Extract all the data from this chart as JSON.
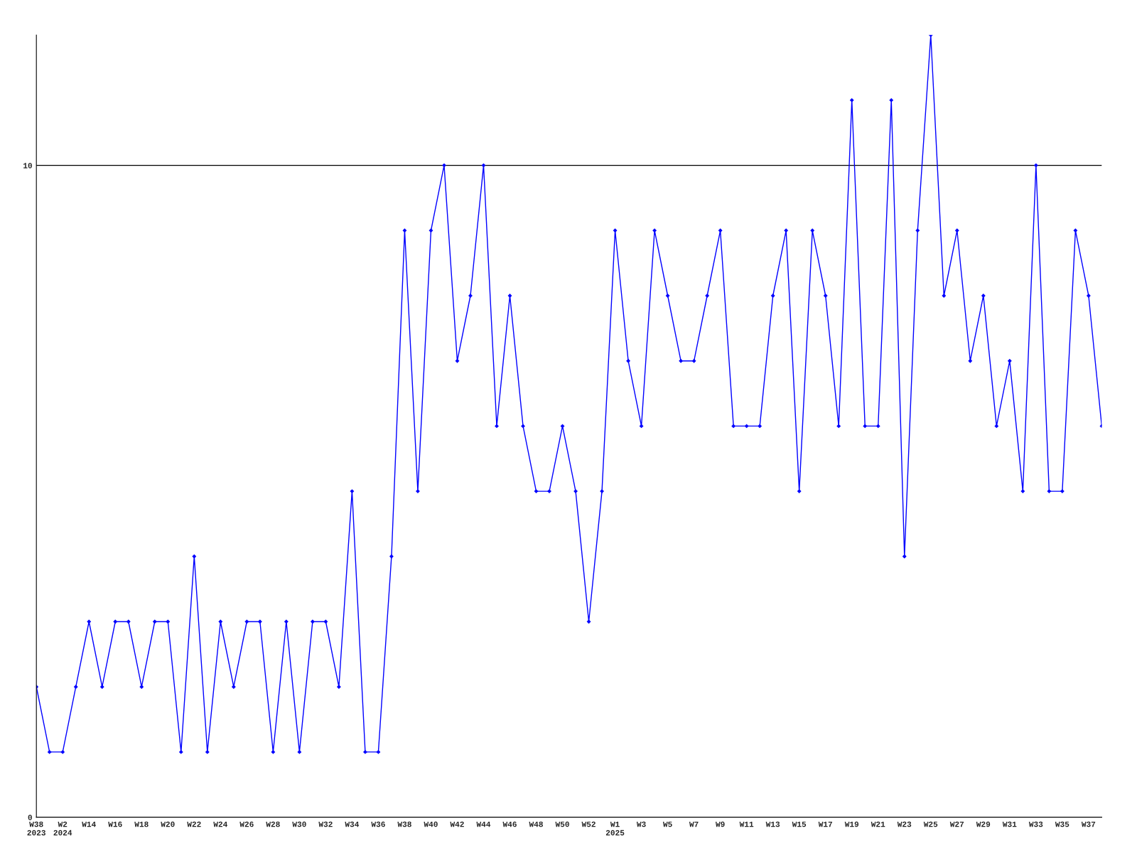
{
  "chart_data": {
    "type": "line",
    "categories": [
      "W38\n2023",
      null,
      "W2\n2024",
      null,
      "W14",
      null,
      "W16",
      null,
      "W18",
      null,
      "W20",
      null,
      "W22",
      null,
      "W24",
      null,
      "W26",
      null,
      "W28",
      null,
      "W30",
      null,
      "W32",
      null,
      "W34",
      null,
      "W36",
      null,
      "W38",
      null,
      "W40",
      null,
      "W42",
      null,
      "W44",
      null,
      "W46",
      null,
      "W48",
      null,
      "W50",
      null,
      "W52",
      null,
      "W1\n2025",
      null,
      "W3",
      null,
      "W5",
      null,
      "W7",
      null,
      "W9",
      null,
      "W11",
      null,
      "W13",
      null,
      "W15",
      null,
      "W17",
      null,
      "W19",
      null,
      "W21",
      null,
      "W23",
      null,
      "W25",
      null,
      "W27",
      null,
      "W29",
      null,
      "W31",
      null,
      "W33",
      null,
      "W35",
      null,
      "W37",
      null
    ],
    "series": [
      {
        "color": "#0000ff",
        "values": [
          2,
          1,
          1,
          2,
          3,
          2,
          3,
          3,
          2,
          3,
          3,
          1,
          4,
          1,
          3,
          2,
          3,
          3,
          1,
          3,
          1,
          3,
          3,
          2,
          5,
          1,
          1,
          4,
          9,
          5,
          9,
          10,
          7,
          8,
          10,
          6,
          8,
          6,
          5,
          5,
          6,
          5,
          3,
          5,
          9,
          7,
          6,
          9,
          8,
          7,
          7,
          8,
          9,
          6,
          6,
          6,
          8,
          9,
          5,
          9,
          8,
          6,
          11,
          6,
          6,
          11,
          4,
          9,
          12,
          8,
          9,
          7,
          8,
          6,
          7,
          5,
          10,
          5,
          5,
          9,
          8,
          6
        ]
      }
    ],
    "ylim": [
      0,
      12
    ],
    "yticks": [
      0,
      10
    ],
    "grid": "y",
    "marker": "diamond",
    "line_style": "solid"
  }
}
